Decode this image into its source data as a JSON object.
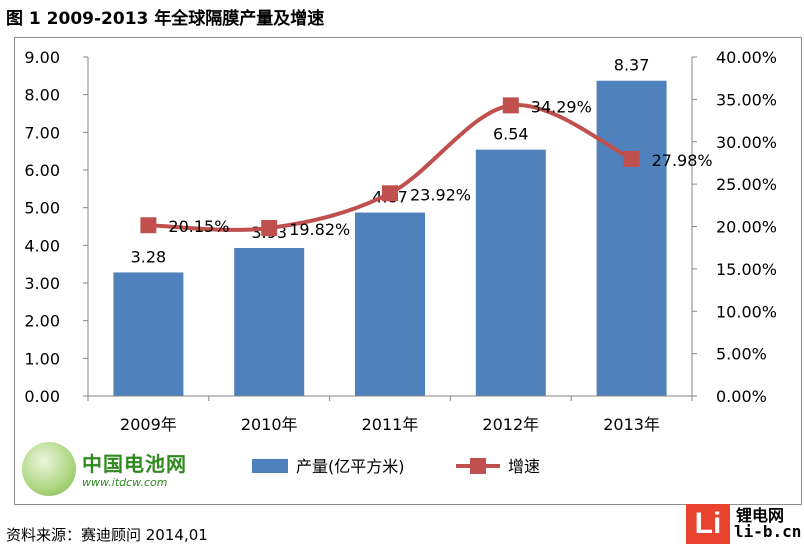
{
  "title": "图 1 2009-2013 年全球隔膜产量及增速",
  "source": "资料来源：赛迪顾问 2014,01",
  "watermark_left": {
    "name": "中国电池网",
    "url": "www.itdcw.com"
  },
  "watermark_right": {
    "badge": "Li",
    "name": "锂电网",
    "domain": "li-b.cn"
  },
  "colors": {
    "bar": "#4f81bd",
    "line": "#c0504d",
    "marker": "#c0504d"
  },
  "chart_data": {
    "type": "bar",
    "categories": [
      "2009年",
      "2010年",
      "2011年",
      "2012年",
      "2013年"
    ],
    "series": [
      {
        "name": "产量(亿平方米)",
        "type": "bar",
        "axis": "left",
        "values": [
          3.28,
          3.93,
          4.87,
          6.54,
          8.37
        ],
        "labels": [
          "3.28",
          "3.93",
          "4.87",
          "6.54",
          "8.37"
        ]
      },
      {
        "name": "增速",
        "type": "line",
        "axis": "right",
        "values": [
          20.15,
          19.82,
          23.92,
          34.29,
          27.98
        ],
        "labels": [
          "20.15%",
          "19.82%",
          "23.92%",
          "34.29%",
          "27.98%"
        ]
      }
    ],
    "y_left": {
      "min": 0,
      "max": 9,
      "step": 1,
      "ticks": [
        "0.00",
        "1.00",
        "2.00",
        "3.00",
        "4.00",
        "5.00",
        "6.00",
        "7.00",
        "8.00",
        "9.00"
      ]
    },
    "y_right": {
      "min": 0,
      "max": 40,
      "step": 5,
      "ticks": [
        "0.00%",
        "5.00%",
        "10.00%",
        "15.00%",
        "20.00%",
        "25.00%",
        "30.00%",
        "35.00%",
        "40.00%"
      ]
    },
    "legend": {
      "position": "bottom",
      "items": [
        "产量(亿平方米)",
        "增速"
      ]
    },
    "grid": false
  }
}
